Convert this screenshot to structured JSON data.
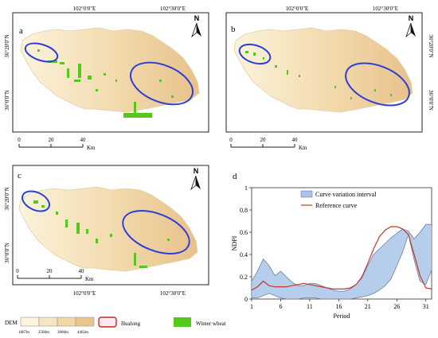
{
  "colors": {
    "dem_ramp": [
      "#fbf3dc",
      "#f6e6c1",
      "#f1d7a4",
      "#eac48a"
    ],
    "map_background": "#f7ecd2",
    "hualong_outline": "#c62828",
    "winter_wheat": "#55c81e",
    "highlight_ellipse": "#2b3fd6",
    "interval_fill": "#a9c4e8",
    "interval_edge": "#6b82a8",
    "reference_curve": "#c0392b",
    "axis": "#333333"
  },
  "icons": {
    "north_arrow": "north-arrow-icon"
  },
  "panels": [
    {
      "id": "a",
      "label": "a",
      "top_coords": [
        "102°0'0\"E",
        "102°30'0\"E"
      ],
      "left_coords": [
        "36°20'0\"N",
        "36°0'0\"N"
      ],
      "right_coords": []
    },
    {
      "id": "b",
      "label": "b",
      "top_coords": [
        "102°0'0\"E",
        "102°30'0\"E"
      ],
      "left_coords": [],
      "right_coords": [
        "36°20'0\"N",
        "36°0'0\"N"
      ]
    },
    {
      "id": "c",
      "label": "c",
      "top_coords": [],
      "left_coords": [
        "36°20'0\"N",
        "36°0'0\"N"
      ],
      "right_coords": [],
      "bottom_coords": [
        "102°0'0\"E",
        "102°30'0\"E"
      ]
    }
  ],
  "north_label": "N",
  "scalebar": {
    "ticks": [
      "0",
      "20",
      "40"
    ],
    "unit": "Km"
  },
  "legend": {
    "dem_label": "DEM",
    "dem_values": [
      "1867m",
      "2500m",
      "3000m",
      "4462m"
    ],
    "hualong_label": "Hualong",
    "wheat_label": "Winter wheat"
  },
  "chart_data": {
    "panel_label": "d",
    "type": "area",
    "xlabel": "Period",
    "ylabel": "NDPI",
    "xlim": [
      1,
      32
    ],
    "ylim": [
      0,
      1
    ],
    "xticks": [
      1,
      6,
      11,
      16,
      21,
      26,
      31
    ],
    "yticks": [
      0,
      0.2,
      0.4,
      0.6,
      0.8,
      1
    ],
    "x": [
      1,
      2,
      3,
      4,
      5,
      6,
      7,
      8,
      9,
      10,
      11,
      12,
      13,
      14,
      15,
      16,
      17,
      18,
      19,
      20,
      21,
      22,
      23,
      24,
      25,
      26,
      27,
      28,
      29,
      30,
      31,
      32
    ],
    "series": [
      {
        "name": "Curve variation interval",
        "kind": "interval",
        "upper": [
          0.16,
          0.25,
          0.36,
          0.3,
          0.21,
          0.25,
          0.2,
          0.15,
          0.12,
          0.12,
          0.14,
          0.14,
          0.12,
          0.1,
          0.08,
          0.07,
          0.07,
          0.09,
          0.13,
          0.19,
          0.3,
          0.4,
          0.45,
          0.5,
          0.55,
          0.59,
          0.63,
          0.61,
          0.54,
          0.6,
          0.67,
          0.67
        ],
        "lower": [
          0.01,
          0.01,
          0.03,
          0.05,
          0.03,
          0.01,
          0.0,
          0.0,
          0.0,
          0.01,
          0.01,
          0.01,
          0.0,
          0.0,
          0.0,
          0.0,
          0.0,
          0.0,
          0.01,
          0.02,
          0.03,
          0.05,
          0.08,
          0.12,
          0.18,
          0.3,
          0.42,
          0.58,
          0.35,
          0.16,
          0.13,
          0.26
        ]
      },
      {
        "name": "Reference curve",
        "kind": "line",
        "values": [
          0.08,
          0.11,
          0.16,
          0.12,
          0.11,
          0.11,
          0.11,
          0.12,
          0.13,
          0.14,
          0.13,
          0.12,
          0.11,
          0.1,
          0.09,
          0.09,
          0.09,
          0.1,
          0.13,
          0.2,
          0.32,
          0.45,
          0.56,
          0.62,
          0.65,
          0.65,
          0.63,
          0.58,
          0.4,
          0.21,
          0.1,
          0.09
        ]
      }
    ]
  }
}
